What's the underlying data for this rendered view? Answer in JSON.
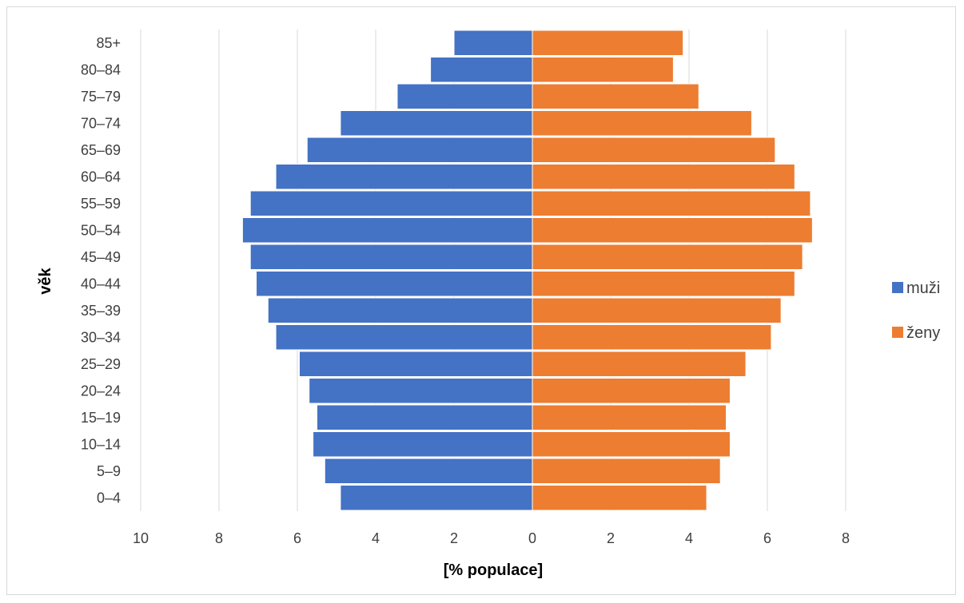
{
  "chart_data": {
    "type": "bar",
    "orientation": "horizontal",
    "layout": "population-pyramid",
    "categories": [
      "0–4",
      "5–9",
      "10–14",
      "15–19",
      "20–24",
      "25–29",
      "30–34",
      "35–39",
      "40–44",
      "45–49",
      "50–54",
      "55–59",
      "60–64",
      "65–69",
      "70–74",
      "75–79",
      "80–84",
      "85+"
    ],
    "series": [
      {
        "name": "muži",
        "color": "#4472C4",
        "side": "left",
        "values": [
          4.9,
          5.3,
          5.6,
          5.5,
          5.7,
          5.95,
          6.55,
          6.75,
          7.05,
          7.2,
          7.4,
          7.2,
          6.55,
          5.75,
          4.9,
          3.45,
          2.6,
          2.0
        ]
      },
      {
        "name": "ženy",
        "color": "#ED7D31",
        "side": "right",
        "values": [
          4.45,
          4.8,
          5.05,
          4.95,
          5.05,
          5.45,
          6.1,
          6.35,
          6.7,
          6.9,
          7.15,
          7.1,
          6.7,
          6.2,
          5.6,
          4.25,
          3.6,
          3.85
        ]
      }
    ],
    "xlim": [
      -10,
      8
    ],
    "xticks": [
      -10,
      -8,
      -6,
      -4,
      -2,
      0,
      2,
      4,
      6,
      8
    ],
    "xtick_labels": [
      "10",
      "8",
      "6",
      "4",
      "2",
      "0",
      "2",
      "4",
      "6",
      "8"
    ],
    "xlabel": "[% populace]",
    "ylabel": "věk",
    "grid": "vertical",
    "grid_color": "#d9d9d9",
    "legend_position": "right"
  }
}
